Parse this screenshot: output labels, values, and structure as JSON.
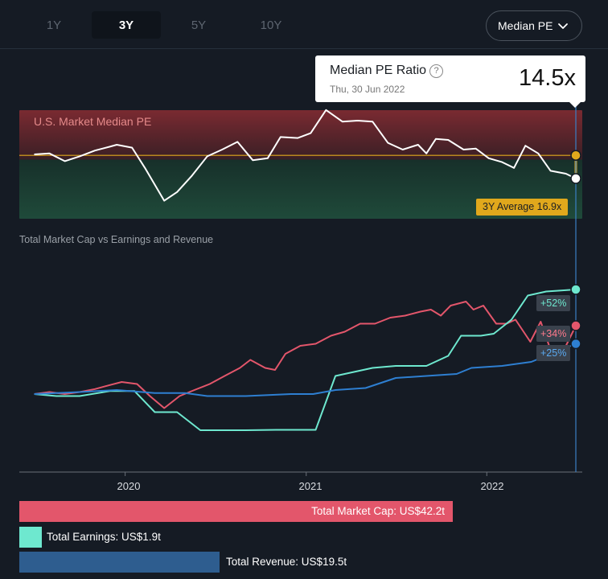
{
  "tabs": [
    {
      "label": "1Y",
      "active": false
    },
    {
      "label": "3Y",
      "active": true
    },
    {
      "label": "5Y",
      "active": false
    },
    {
      "label": "10Y",
      "active": false
    }
  ],
  "dropdown": {
    "label": "Median PE",
    "icon": "chevron-down-icon"
  },
  "tooltip": {
    "title": "Median PE Ratio",
    "help_icon": "question-icon",
    "help_glyph": "?",
    "date": "Thu, 30 Jun 2022",
    "value": "14.5x"
  },
  "colors": {
    "pe_line": "#ffffff",
    "average_line": "#e0a81c",
    "market_cap": "#e3566b",
    "earnings": "#6ee8cf",
    "revenue": "#2e7fd1",
    "band_top": "#7a2a31",
    "band_bottom": "#1f4a3a"
  },
  "chart_data": [
    {
      "type": "line",
      "title": "U.S. Market Median PE",
      "average": {
        "label": "3Y Average 16.9x",
        "value": 16.9
      },
      "ylim": [
        11,
        23
      ],
      "series": [
        {
          "name": "Median PE Ratio",
          "points": [
            [
              "2019-07-01",
              17.0
            ],
            [
              "2019-08-01",
              17.1
            ],
            [
              "2019-09-01",
              16.3
            ],
            [
              "2019-10-01",
              16.8
            ],
            [
              "2019-11-01",
              17.4
            ],
            [
              "2019-12-01",
              17.8
            ],
            [
              "2019-12-15",
              18.0
            ],
            [
              "2020-01-15",
              17.7
            ],
            [
              "2020-02-10",
              15.6
            ],
            [
              "2020-03-20",
              12.2
            ],
            [
              "2020-04-15",
              13.1
            ],
            [
              "2020-05-15",
              14.8
            ],
            [
              "2020-06-15",
              16.8
            ],
            [
              "2020-07-15",
              17.5
            ],
            [
              "2020-08-15",
              18.3
            ],
            [
              "2020-09-15",
              16.4
            ],
            [
              "2020-10-15",
              16.6
            ],
            [
              "2020-11-10",
              18.8
            ],
            [
              "2020-12-15",
              18.7
            ],
            [
              "2021-01-10",
              19.2
            ],
            [
              "2021-02-10",
              21.6
            ],
            [
              "2021-03-15",
              20.4
            ],
            [
              "2021-04-15",
              20.5
            ],
            [
              "2021-05-15",
              20.4
            ],
            [
              "2021-06-15",
              18.2
            ],
            [
              "2021-07-15",
              17.5
            ],
            [
              "2021-08-15",
              18.0
            ],
            [
              "2021-09-01",
              17.1
            ],
            [
              "2021-09-20",
              18.6
            ],
            [
              "2021-10-15",
              18.5
            ],
            [
              "2021-11-15",
              17.5
            ],
            [
              "2021-12-10",
              17.6
            ],
            [
              "2022-01-05",
              16.6
            ],
            [
              "2022-02-01",
              16.2
            ],
            [
              "2022-02-25",
              15.6
            ],
            [
              "2022-03-20",
              17.9
            ],
            [
              "2022-04-15",
              17.1
            ],
            [
              "2022-05-10",
              15.3
            ],
            [
              "2022-06-10",
              15.0
            ],
            [
              "2022-06-30",
              14.5
            ]
          ]
        }
      ]
    },
    {
      "type": "line",
      "title": "Total Market Cap vs Earnings and Revenue",
      "x_ticks": [
        "2020",
        "2021",
        "2022"
      ],
      "ylim": [
        -30,
        70
      ],
      "series": [
        {
          "name": "Total Market Cap",
          "end_label": "+34%",
          "total_label": "Total Market Cap: US$42.2t",
          "total_value": 42.2,
          "points": [
            [
              "2019-07-01",
              0
            ],
            [
              "2019-08-01",
              1
            ],
            [
              "2019-09-01",
              0
            ],
            [
              "2019-10-01",
              1
            ],
            [
              "2019-11-01",
              2.5
            ],
            [
              "2019-12-01",
              4.5
            ],
            [
              "2019-12-25",
              6
            ],
            [
              "2020-01-25",
              5
            ],
            [
              "2020-02-20",
              -1
            ],
            [
              "2020-03-20",
              -7
            ],
            [
              "2020-04-20",
              -1
            ],
            [
              "2020-05-20",
              2
            ],
            [
              "2020-06-20",
              5
            ],
            [
              "2020-07-20",
              9
            ],
            [
              "2020-08-20",
              13
            ],
            [
              "2020-09-10",
              17
            ],
            [
              "2020-10-10",
              13
            ],
            [
              "2020-10-30",
              12
            ],
            [
              "2020-11-20",
              20
            ],
            [
              "2020-12-20",
              24
            ],
            [
              "2021-01-20",
              25
            ],
            [
              "2021-02-20",
              29
            ],
            [
              "2021-03-20",
              31
            ],
            [
              "2021-04-20",
              35
            ],
            [
              "2021-05-20",
              35
            ],
            [
              "2021-06-20",
              38
            ],
            [
              "2021-07-20",
              39
            ],
            [
              "2021-08-20",
              41
            ],
            [
              "2021-09-10",
              42
            ],
            [
              "2021-09-30",
              39
            ],
            [
              "2021-10-20",
              44
            ],
            [
              "2021-11-20",
              46
            ],
            [
              "2021-12-05",
              42
            ],
            [
              "2021-12-25",
              44
            ],
            [
              "2022-01-20",
              35
            ],
            [
              "2022-02-10",
              35
            ],
            [
              "2022-02-28",
              37
            ],
            [
              "2022-03-30",
              26
            ],
            [
              "2022-04-20",
              36
            ],
            [
              "2022-05-10",
              22
            ],
            [
              "2022-06-10",
              24
            ],
            [
              "2022-06-30",
              34
            ]
          ]
        },
        {
          "name": "Total Earnings",
          "end_label": "+52%",
          "total_label": "Total Earnings: US$1.9t",
          "total_value": 1.9,
          "points": [
            [
              "2019-07-01",
              0
            ],
            [
              "2019-08-15",
              -1
            ],
            [
              "2019-10-01",
              -1
            ],
            [
              "2019-12-01",
              1.5
            ],
            [
              "2020-01-20",
              1.5
            ],
            [
              "2020-03-01",
              -9
            ],
            [
              "2020-04-15",
              -9
            ],
            [
              "2020-06-01",
              -18
            ],
            [
              "2020-09-01",
              -18
            ],
            [
              "2020-11-01",
              -17.8
            ],
            [
              "2021-01-20",
              -17.8
            ],
            [
              "2021-03-01",
              9
            ],
            [
              "2021-05-15",
              13
            ],
            [
              "2021-07-01",
              14
            ],
            [
              "2021-09-01",
              14
            ],
            [
              "2021-10-15",
              19
            ],
            [
              "2021-11-10",
              29
            ],
            [
              "2021-12-20",
              29
            ],
            [
              "2022-01-15",
              30
            ],
            [
              "2022-02-20",
              37
            ],
            [
              "2022-03-25",
              49
            ],
            [
              "2022-05-01",
              51
            ],
            [
              "2022-06-30",
              52
            ]
          ]
        },
        {
          "name": "Total Revenue",
          "end_label": "+25%",
          "total_label": "Total Revenue: US$19.5t",
          "total_value": 19.5,
          "points": [
            [
              "2019-07-01",
              0
            ],
            [
              "2019-10-01",
              1
            ],
            [
              "2019-12-15",
              2
            ],
            [
              "2020-03-01",
              0.5
            ],
            [
              "2020-05-01",
              0.5
            ],
            [
              "2020-06-15",
              -1
            ],
            [
              "2020-09-01",
              -1
            ],
            [
              "2020-12-01",
              0
            ],
            [
              "2021-01-15",
              0
            ],
            [
              "2021-03-01",
              2
            ],
            [
              "2021-05-01",
              3
            ],
            [
              "2021-07-01",
              8
            ],
            [
              "2021-09-01",
              9
            ],
            [
              "2021-11-01",
              10
            ],
            [
              "2021-12-01",
              13
            ],
            [
              "2022-02-01",
              14
            ],
            [
              "2022-04-01",
              16
            ],
            [
              "2022-06-30",
              25
            ]
          ]
        }
      ]
    }
  ]
}
